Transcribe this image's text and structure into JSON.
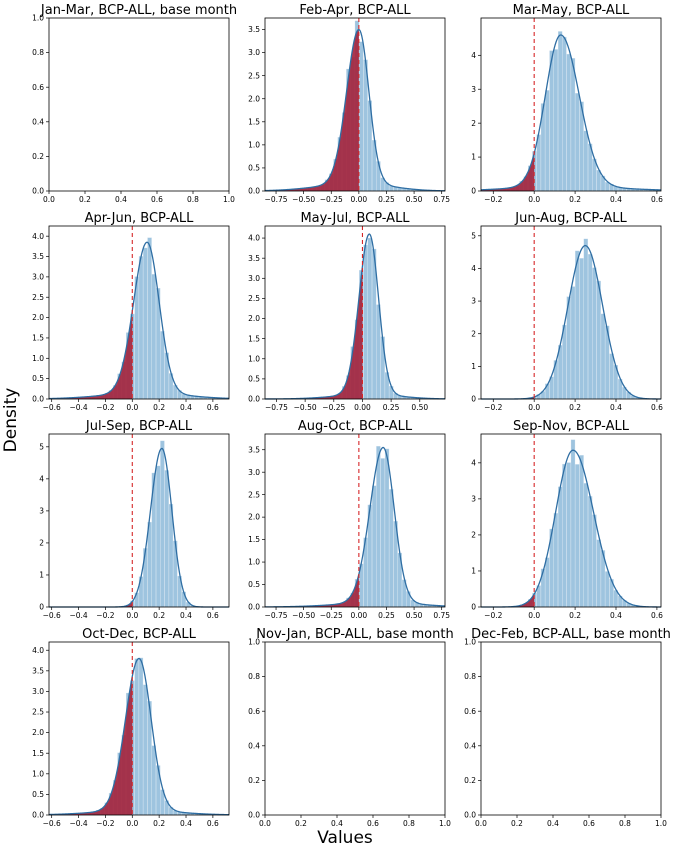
{
  "figure": {
    "ylabel": "Density",
    "xlabel": "Values"
  },
  "colors": {
    "hist": "#9ec4df",
    "hist_edge": "#cfe0ee",
    "kde": "#2f6ea3",
    "shade": "#a3223b",
    "cutoff": "#d62728",
    "axis": "#000000"
  },
  "chart_data": [
    {
      "title": "Jan-Mar, BCP-ALL, base month",
      "type": "empty",
      "xlim": [
        0,
        1
      ],
      "ylim": [
        0,
        1
      ],
      "xticks": [
        0.0,
        0.2,
        0.4,
        0.6,
        0.8,
        1.0
      ],
      "xtick_labels": [
        "0.0",
        "0.2",
        "0.4",
        "0.6",
        "0.8",
        "1.0"
      ],
      "yticks": [
        0.0,
        0.2,
        0.4,
        0.6,
        0.8,
        1.0
      ],
      "ytick_labels": [
        "0.0",
        "0.2",
        "0.4",
        "0.6",
        "0.8",
        "1.0"
      ]
    },
    {
      "title": "Feb-Apr, BCP-ALL",
      "type": "area",
      "xlim": [
        -0.85,
        0.78
      ],
      "ylim": [
        0,
        3.75
      ],
      "xticks": [
        -0.75,
        -0.5,
        -0.25,
        0,
        0.25,
        0.5,
        0.75
      ],
      "xtick_labels": [
        "−0.75",
        "−0.50",
        "−0.25",
        "0.00",
        "0.25",
        "0.50",
        "0.75"
      ],
      "yticks": [
        0,
        0.5,
        1,
        1.5,
        2,
        2.5,
        3,
        3.5
      ],
      "ytick_labels": [
        "0.0",
        "0.5",
        "1.0",
        "1.5",
        "2.0",
        "2.5",
        "3.0",
        "3.5"
      ],
      "peak_x": 0.0,
      "peak_y": 3.5,
      "sd_left": 0.11,
      "sd_right": 0.09,
      "tail": 0.05,
      "cutoff": 0.0
    },
    {
      "title": "Mar-May, BCP-ALL",
      "type": "area",
      "xlim": [
        -0.26,
        0.62
      ],
      "ylim": [
        0,
        5.1
      ],
      "xticks": [
        -0.2,
        0,
        0.2,
        0.4,
        0.6
      ],
      "xtick_labels": [
        "−0.2",
        "0.0",
        "0.2",
        "0.4",
        "0.6"
      ],
      "yticks": [
        0,
        1,
        2,
        3,
        4
      ],
      "ytick_labels": [
        "0",
        "1",
        "2",
        "3",
        "4"
      ],
      "peak_x": 0.13,
      "peak_y": 4.6,
      "sd_left": 0.075,
      "sd_right": 0.09,
      "tail": 0.03,
      "cutoff": 0.0
    },
    {
      "title": "Apr-Jun, BCP-ALL",
      "type": "area",
      "xlim": [
        -0.62,
        0.72
      ],
      "ylim": [
        0,
        4.25
      ],
      "xticks": [
        -0.6,
        -0.4,
        -0.2,
        0,
        0.2,
        0.4,
        0.6
      ],
      "xtick_labels": [
        "−0.6",
        "−0.4",
        "−0.2",
        "0.0",
        "0.2",
        "0.4",
        "0.6"
      ],
      "yticks": [
        0,
        0.5,
        1,
        1.5,
        2,
        2.5,
        3,
        3.5,
        4
      ],
      "ytick_labels": [
        "0.0",
        "0.5",
        "1.0",
        "1.5",
        "2.0",
        "2.5",
        "3.0",
        "3.5",
        "4.0"
      ],
      "peak_x": 0.11,
      "peak_y": 3.85,
      "sd_left": 0.1,
      "sd_right": 0.09,
      "tail": 0.04,
      "cutoff": 0.0
    },
    {
      "title": "May-Jul, BCP-ALL",
      "type": "area",
      "xlim": [
        -0.85,
        0.72
      ],
      "ylim": [
        0,
        4.3
      ],
      "xticks": [
        -0.75,
        -0.5,
        -0.25,
        0,
        0.25,
        0.5
      ],
      "xtick_labels": [
        "−0.75",
        "−0.50",
        "−0.25",
        "0.00",
        "0.25",
        "0.50"
      ],
      "yticks": [
        0,
        0.5,
        1,
        1.5,
        2,
        2.5,
        3,
        3.5,
        4
      ],
      "ytick_labels": [
        "0.0",
        "0.5",
        "1.0",
        "1.5",
        "2.0",
        "2.5",
        "3.0",
        "3.5",
        "4.0"
      ],
      "peak_x": 0.06,
      "peak_y": 4.1,
      "sd_left": 0.09,
      "sd_right": 0.08,
      "tail": 0.03,
      "cutoff": 0.0
    },
    {
      "title": "Jun-Aug, BCP-ALL",
      "type": "area",
      "xlim": [
        -0.26,
        0.62
      ],
      "ylim": [
        0,
        5.3
      ],
      "xticks": [
        -0.2,
        0,
        0.2,
        0.4,
        0.6
      ],
      "xtick_labels": [
        "−0.2",
        "0.0",
        "0.2",
        "0.4",
        "0.6"
      ],
      "yticks": [
        0,
        1,
        2,
        3,
        4,
        5
      ],
      "ytick_labels": [
        "0",
        "1",
        "2",
        "3",
        "4",
        "5"
      ],
      "peak_x": 0.25,
      "peak_y": 4.7,
      "sd_left": 0.085,
      "sd_right": 0.085,
      "tail": 0.0,
      "cutoff": 0.0
    },
    {
      "title": "Jul-Sep, BCP-ALL",
      "type": "area",
      "xlim": [
        -0.62,
        0.72
      ],
      "ylim": [
        0,
        5.4
      ],
      "xticks": [
        -0.6,
        -0.4,
        -0.2,
        0,
        0.2,
        0.4,
        0.6
      ],
      "xtick_labels": [
        "−0.6",
        "−0.4",
        "−0.2",
        "0.0",
        "0.2",
        "0.4",
        "0.6"
      ],
      "yticks": [
        0,
        1,
        2,
        3,
        4,
        5
      ],
      "ytick_labels": [
        "0",
        "1",
        "2",
        "3",
        "4",
        "5"
      ],
      "peak_x": 0.22,
      "peak_y": 4.95,
      "sd_left": 0.085,
      "sd_right": 0.075,
      "tail": 0.0,
      "cutoff": 0.0
    },
    {
      "title": "Aug-Oct, BCP-ALL",
      "type": "area",
      "xlim": [
        -0.85,
        0.78
      ],
      "ylim": [
        0,
        3.85
      ],
      "xticks": [
        -0.75,
        -0.5,
        -0.25,
        0,
        0.25,
        0.5,
        0.75
      ],
      "xtick_labels": [
        "−0.75",
        "−0.50",
        "−0.25",
        "0.00",
        "0.25",
        "0.50",
        "0.75"
      ],
      "yticks": [
        0,
        0.5,
        1,
        1.5,
        2,
        2.5,
        3,
        3.5
      ],
      "ytick_labels": [
        "0.0",
        "0.5",
        "1.0",
        "1.5",
        "2.0",
        "2.5",
        "3.0",
        "3.5"
      ],
      "peak_x": 0.22,
      "peak_y": 3.55,
      "sd_left": 0.12,
      "sd_right": 0.1,
      "tail": 0.03,
      "cutoff": 0.0
    },
    {
      "title": "Sep-Nov, BCP-ALL",
      "type": "area",
      "xlim": [
        -0.26,
        0.62
      ],
      "ylim": [
        0,
        4.8
      ],
      "xticks": [
        -0.2,
        0,
        0.2,
        0.4,
        0.6
      ],
      "xtick_labels": [
        "−0.2",
        "0.0",
        "0.2",
        "0.4",
        "0.6"
      ],
      "yticks": [
        0,
        1,
        2,
        3,
        4
      ],
      "ytick_labels": [
        "0",
        "1",
        "2",
        "3",
        "4"
      ],
      "peak_x": 0.19,
      "peak_y": 4.35,
      "sd_left": 0.085,
      "sd_right": 0.1,
      "tail": 0.0,
      "cutoff": 0.0
    },
    {
      "title": "Oct-Dec, BCP-ALL",
      "type": "area",
      "xlim": [
        -0.62,
        0.72
      ],
      "ylim": [
        0,
        4.2
      ],
      "xticks": [
        -0.6,
        -0.4,
        -0.2,
        0,
        0.2,
        0.4,
        0.6
      ],
      "xtick_labels": [
        "−0.6",
        "−0.4",
        "−0.2",
        "0.0",
        "0.2",
        "0.4",
        "0.6"
      ],
      "yticks": [
        0,
        0.5,
        1,
        1.5,
        2,
        2.5,
        3,
        3.5,
        4
      ],
      "ytick_labels": [
        "0.0",
        "0.5",
        "1.0",
        "1.5",
        "2.0",
        "2.5",
        "3.0",
        "3.5",
        "4.0"
      ],
      "peak_x": 0.05,
      "peak_y": 3.8,
      "sd_left": 0.1,
      "sd_right": 0.09,
      "tail": 0.03,
      "cutoff": 0.0
    },
    {
      "title": "Nov-Jan, BCP-ALL, base month",
      "type": "empty",
      "xlim": [
        0,
        1
      ],
      "ylim": [
        0,
        1
      ],
      "xticks": [
        0.0,
        0.2,
        0.4,
        0.6,
        0.8,
        1.0
      ],
      "xtick_labels": [
        "0.0",
        "0.2",
        "0.4",
        "0.6",
        "0.8",
        "1.0"
      ],
      "yticks": [
        0.0,
        0.2,
        0.4,
        0.6,
        0.8,
        1.0
      ],
      "ytick_labels": [
        "0.0",
        "0.2",
        "0.4",
        "0.6",
        "0.8",
        "1.0"
      ]
    },
    {
      "title": "Dec-Feb, BCP-ALL, base month",
      "type": "empty",
      "xlim": [
        0,
        1
      ],
      "ylim": [
        0,
        1
      ],
      "xticks": [
        0.0,
        0.2,
        0.4,
        0.6,
        0.8,
        1.0
      ],
      "xtick_labels": [
        "0.0",
        "0.2",
        "0.4",
        "0.6",
        "0.8",
        "1.0"
      ],
      "yticks": [
        0.0,
        0.2,
        0.4,
        0.6,
        0.8,
        1.0
      ],
      "ytick_labels": [
        "0.0",
        "0.2",
        "0.4",
        "0.6",
        "0.8",
        "1.0"
      ]
    }
  ]
}
